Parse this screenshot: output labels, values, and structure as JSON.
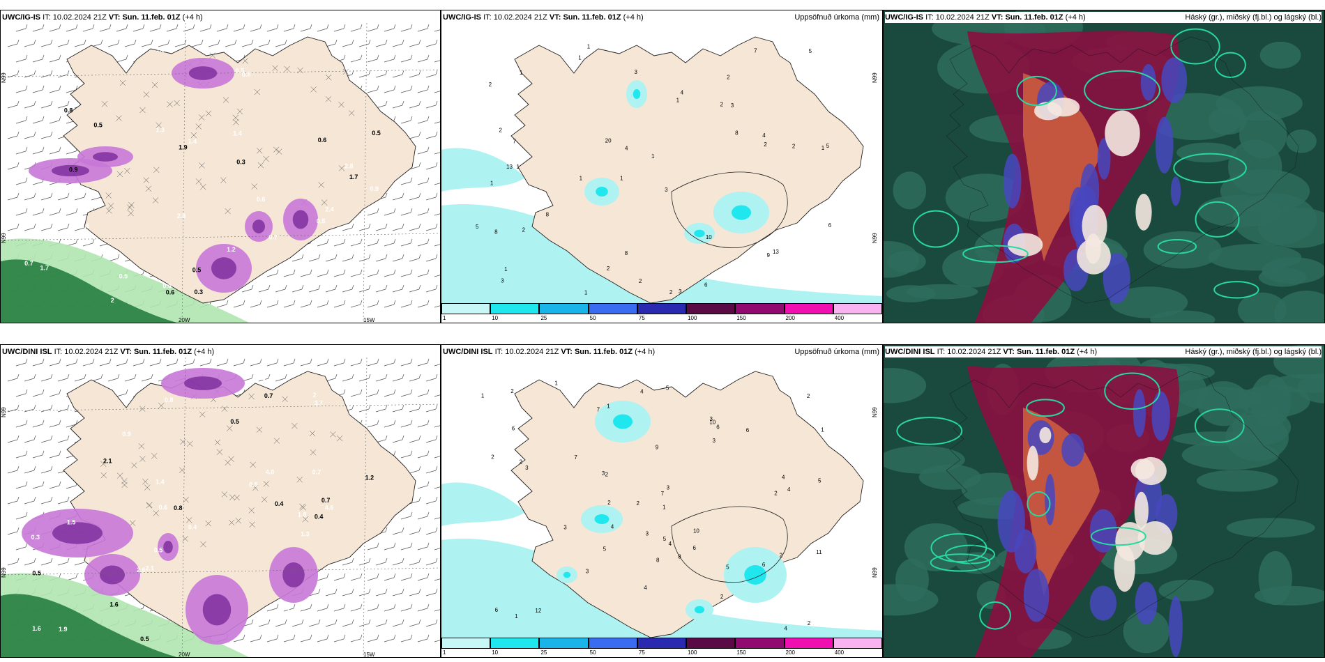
{
  "rows": [
    {
      "wind_panel": {
        "model": "UWC/IG-IS",
        "it_label": "IT:",
        "it_value": "10.02.2024 21Z",
        "vt_label": "VT:",
        "vt_value": "Sun. 11.feb. 01Z",
        "lead": "(+4 h)",
        "lat_label": "N99",
        "lat_label2": "N99",
        "lon_label1": "20W",
        "lon_label2": "15W",
        "values": [
          "0.5",
          "0.6",
          "0.5",
          "0.7",
          "0.6",
          "0.8",
          "0.9",
          "1.3",
          "0.5",
          "1.4",
          "1.7",
          "0.3",
          "2.4",
          "0.6",
          "0.6",
          "2.8",
          "1.8",
          "0.3",
          "1.2",
          "1.0",
          "1.7",
          "1.4",
          "0.7",
          "1.9",
          "0.5",
          "0.8",
          "0.6",
          "0.5",
          "0.8",
          "0.9",
          "2",
          "2.8",
          "0.5",
          "0.3",
          "0.6"
        ]
      },
      "precip_panel": {
        "model": "UWC/IG-IS",
        "it_label": "IT:",
        "it_value": "10.02.2024 21Z",
        "vt_label": "VT:",
        "vt_value": "Sun. 11.feb. 01Z",
        "lead": "(+4 h)",
        "title": "Uppsöfnuð úrkoma (mm)",
        "lat_label": "N99",
        "lat_label2": "N99",
        "values": [
          "1",
          "2",
          "1",
          "1",
          "3",
          "1",
          "2",
          "2",
          "1",
          "1",
          "1",
          "3",
          "1",
          "1",
          "2",
          "3",
          "8",
          "7",
          "8",
          "8",
          "7",
          "13",
          "5",
          "2",
          "5",
          "2",
          "4",
          "2",
          "13",
          "8",
          "9",
          "4",
          "2",
          "20",
          "10",
          "6",
          "4",
          "2",
          "5",
          "3",
          "1",
          "1",
          "6",
          "1",
          "2",
          "3"
        ]
      },
      "cloud_panel": {
        "model": "UWC/IG-IS",
        "it_label": "IT:",
        "it_value": "10.02.2024 21Z",
        "vt_label": "VT:",
        "vt_value": "Sun. 11.feb. 01Z",
        "lead": "(+4 h)",
        "title": "Háský (gr.), miðský (fj.bl.) og lágský (bl.)"
      }
    },
    {
      "wind_panel": {
        "model": "UWC/DINI ISL",
        "it_label": "IT:",
        "it_value": "10.02.2024 21Z",
        "vt_label": "VT:",
        "vt_value": "Sun. 11.feb. 01Z",
        "lead": "(+4 h)",
        "lat_label": "N99",
        "lat_label2": "N99",
        "lon_label1": "20W",
        "lon_label2": "15W",
        "values": [
          "1.6",
          "0.3",
          "0.5",
          "0.6",
          "0.5",
          "0.5",
          "0.3",
          "0.5",
          "0.4",
          "1.2",
          "1.3",
          "1.6",
          "1.4",
          "1.5",
          "0.7",
          "0.4",
          "0.3",
          "0.8",
          "2.6",
          "3.7",
          "0.7",
          "0.9",
          "0.7",
          "2.1",
          "4.0",
          "2.1",
          "1.2",
          "4.6",
          "1.8",
          "0.5",
          "1.9",
          "0.8",
          "0.4",
          "2"
        ]
      },
      "precip_panel": {
        "model": "UWC/DINI ISL",
        "it_label": "IT:",
        "it_value": "10.02.2024 21Z",
        "vt_label": "VT:",
        "vt_value": "Sun. 11.feb. 01Z",
        "lead": "(+4 h)",
        "title": "Uppsöfnuð úrkoma (mm)",
        "lat_label": "N99",
        "lat_label2": "N99",
        "values": [
          "6",
          "2",
          "1",
          "1",
          "2",
          "4",
          "3",
          "4",
          "2",
          "3",
          "2",
          "4",
          "2",
          "2",
          "3",
          "1",
          "2",
          "2",
          "1",
          "2",
          "3",
          "5",
          "3",
          "5",
          "6",
          "7",
          "5",
          "6",
          "7",
          "8",
          "6",
          "12",
          "10",
          "6",
          "2",
          "5",
          "3",
          "4",
          "6",
          "8",
          "10",
          "1",
          "5",
          "2",
          "4",
          "3",
          "7",
          "11",
          "4",
          "1",
          "3",
          "4",
          "9"
        ]
      },
      "cloud_panel": {
        "model": "UWC/DINI ISL",
        "it_label": "IT:",
        "it_value": "10.02.2024 21Z",
        "vt_label": "VT:",
        "vt_value": "Sun. 11.feb. 01Z",
        "lead": "(+4 h)",
        "title": "Háský (gr.), miðský (fj.bl.) og lágský (bl.)"
      }
    }
  ],
  "colorbar": {
    "ticks": [
      "1",
      "10",
      "25",
      "50",
      "75",
      "100",
      "150",
      "200",
      "400"
    ],
    "colors": [
      "#c8f7f7",
      "#20e6ee",
      "#1ab4e8",
      "#3a6cf0",
      "#2a2ab0",
      "#5a0a44",
      "#900a70",
      "#f010b0",
      "#f8b4f0"
    ]
  },
  "palette": {
    "land": "#f5e6d6",
    "precip_light": "#aef2f2",
    "precip_mid": "#20e6ee",
    "precip_dark": "#1ab4e8",
    "gust_purple": "#c878d8",
    "gust_dark": "#7a2a9a",
    "green_light": "#b0e6b0",
    "green_dark": "#0a6a2a",
    "cloud_deep": "#1a4a3e",
    "cloud_mid": "#2e6e5e",
    "cloud_edge": "#28d8a0",
    "cloud_maroon": "#8a1040",
    "cloud_orange": "#d06040",
    "cloud_blue": "#4848c0"
  }
}
